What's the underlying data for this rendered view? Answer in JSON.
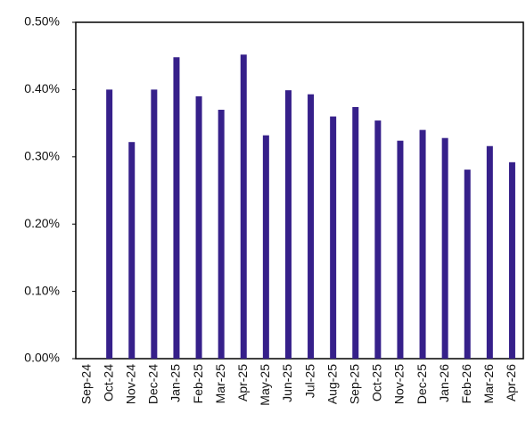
{
  "chart_data": {
    "type": "bar",
    "categories": [
      "Sep-24",
      "Oct-24",
      "Nov-24",
      "Dec-24",
      "Jan-25",
      "Feb-25",
      "Mar-25",
      "Apr-25",
      "May-25",
      "Jun-25",
      "Jul-25",
      "Aug-25",
      "Sep-25",
      "Oct-25",
      "Nov-25",
      "Dec-25",
      "Jan-26",
      "Feb-26",
      "Mar-26",
      "Apr-26"
    ],
    "values": [
      null,
      0.4,
      0.322,
      0.4,
      0.448,
      0.39,
      0.37,
      0.452,
      0.332,
      0.399,
      0.393,
      0.36,
      0.374,
      0.354,
      0.324,
      0.34,
      0.328,
      0.281,
      0.316,
      0.292
    ],
    "color": "#36208a",
    "ylim": [
      0,
      0.5
    ],
    "yticks": [
      {
        "value": 0,
        "label": "0.00%"
      },
      {
        "value": 0.1,
        "label": "0.10%"
      },
      {
        "value": 0.2,
        "label": "0.20%"
      },
      {
        "value": 0.3,
        "label": "0.30%"
      },
      {
        "value": 0.4,
        "label": "0.40%"
      },
      {
        "value": 0.5,
        "label": "0.50%"
      }
    ],
    "grid": false
  }
}
